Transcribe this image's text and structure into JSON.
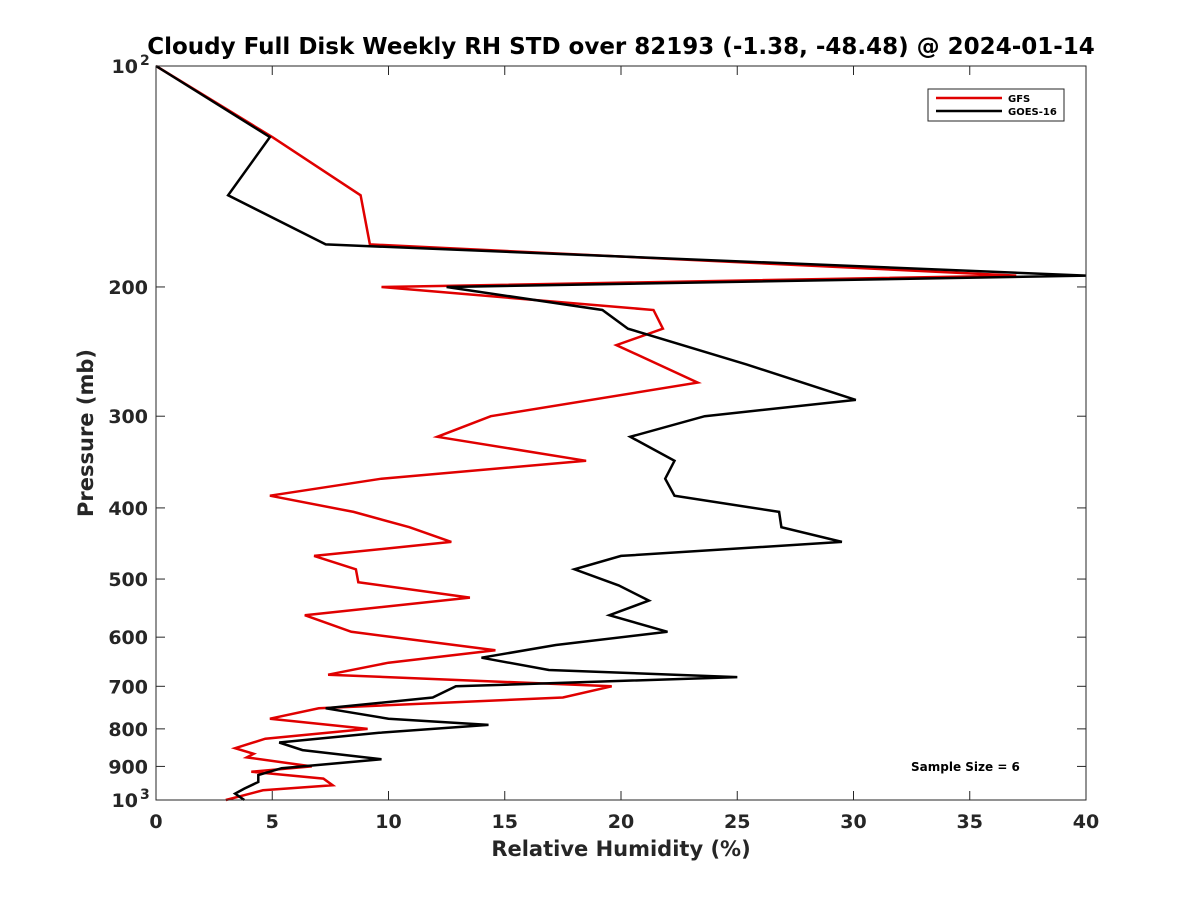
{
  "chart_data": {
    "type": "line",
    "title": "Cloudy Full Disk Weekly RH STD over 82193 (-1.38, -48.48) @ 2024-01-14",
    "xlabel": "Relative Humidity (%)",
    "ylabel": "Pressure (mb)",
    "xlim": [
      0,
      40
    ],
    "ylim": [
      100,
      1000
    ],
    "y_scale": "log",
    "y_reversed": true,
    "x_ticks": [
      0,
      5,
      10,
      15,
      20,
      25,
      30,
      35,
      40
    ],
    "y_ticks": [
      {
        "value": 100,
        "label": "10",
        "sup": "2"
      },
      {
        "value": 200,
        "label": "200"
      },
      {
        "value": 300,
        "label": "300"
      },
      {
        "value": 400,
        "label": "400"
      },
      {
        "value": 500,
        "label": "500"
      },
      {
        "value": 600,
        "label": "600"
      },
      {
        "value": 700,
        "label": "700"
      },
      {
        "value": 800,
        "label": "800"
      },
      {
        "value": 900,
        "label": "900"
      },
      {
        "value": 1000,
        "label": "10",
        "sup": "3"
      }
    ],
    "legend_position": "top-right",
    "annotation": "Sample Size = 6",
    "grid": false,
    "series": [
      {
        "name": "GFS",
        "color": "#e00000",
        "points": [
          [
            0.0,
            100
          ],
          [
            5.0,
            125
          ],
          [
            8.8,
            150
          ],
          [
            9.2,
            175
          ],
          [
            37.0,
            193
          ],
          [
            9.7,
            200
          ],
          [
            21.4,
            215
          ],
          [
            21.8,
            228
          ],
          [
            19.8,
            240
          ],
          [
            23.3,
            270
          ],
          [
            14.4,
            300
          ],
          [
            12.1,
            320
          ],
          [
            18.5,
            345
          ],
          [
            9.7,
            365
          ],
          [
            4.9,
            385
          ],
          [
            8.5,
            405
          ],
          [
            10.9,
            425
          ],
          [
            12.7,
            445
          ],
          [
            6.8,
            465
          ],
          [
            8.6,
            485
          ],
          [
            8.7,
            505
          ],
          [
            13.5,
            530
          ],
          [
            6.4,
            560
          ],
          [
            8.4,
            590
          ],
          [
            14.6,
            625
          ],
          [
            10.0,
            650
          ],
          [
            7.4,
            675
          ],
          [
            19.6,
            700
          ],
          [
            17.5,
            725
          ],
          [
            7.0,
            750
          ],
          [
            4.9,
            775
          ],
          [
            9.1,
            800
          ],
          [
            4.7,
            825
          ],
          [
            3.4,
            850
          ],
          [
            4.2,
            865
          ],
          [
            3.9,
            875
          ],
          [
            6.7,
            900
          ],
          [
            4.1,
            915
          ],
          [
            7.2,
            935
          ],
          [
            7.6,
            955
          ],
          [
            4.6,
            970
          ],
          [
            3.0,
            1000
          ]
        ]
      },
      {
        "name": "GOES-16",
        "color": "#000000",
        "points": [
          [
            0.0,
            100
          ],
          [
            4.9,
            125
          ],
          [
            3.1,
            150
          ],
          [
            7.3,
            175
          ],
          [
            40.0,
            193
          ],
          [
            12.5,
            200
          ],
          [
            19.2,
            215
          ],
          [
            20.3,
            228
          ],
          [
            25.4,
            255
          ],
          [
            30.1,
            285
          ],
          [
            23.6,
            300
          ],
          [
            20.4,
            320
          ],
          [
            22.3,
            345
          ],
          [
            21.9,
            365
          ],
          [
            22.3,
            385
          ],
          [
            26.8,
            405
          ],
          [
            26.9,
            425
          ],
          [
            29.5,
            445
          ],
          [
            20.0,
            465
          ],
          [
            18.0,
            485
          ],
          [
            19.9,
            510
          ],
          [
            21.2,
            535
          ],
          [
            19.5,
            560
          ],
          [
            22.0,
            590
          ],
          [
            17.2,
            615
          ],
          [
            14.0,
            640
          ],
          [
            16.9,
            665
          ],
          [
            25.0,
            680
          ],
          [
            12.9,
            700
          ],
          [
            11.9,
            725
          ],
          [
            7.3,
            750
          ],
          [
            10.0,
            775
          ],
          [
            14.3,
            790
          ],
          [
            9.6,
            810
          ],
          [
            5.3,
            835
          ],
          [
            6.3,
            855
          ],
          [
            9.7,
            880
          ],
          [
            5.4,
            905
          ],
          [
            4.4,
            925
          ],
          [
            4.4,
            945
          ],
          [
            3.8,
            965
          ],
          [
            3.4,
            980
          ],
          [
            3.8,
            1000
          ]
        ]
      }
    ]
  }
}
